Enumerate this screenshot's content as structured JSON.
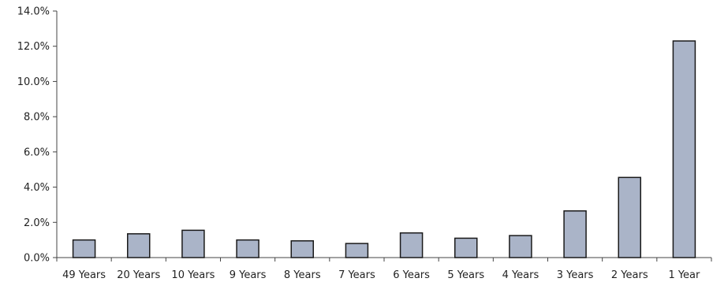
{
  "chart_data": {
    "type": "bar",
    "categories": [
      "49 Years",
      "20 Years",
      "10 Years",
      "9 Years",
      "8 Years",
      "7 Years",
      "6 Years",
      "5 Years",
      "4 Years",
      "3 Years",
      "2 Years",
      "1 Year"
    ],
    "series": [
      {
        "values": [
          1.0,
          1.35,
          1.55,
          1.0,
          0.95,
          0.8,
          1.4,
          1.1,
          1.25,
          2.65,
          4.55,
          12.3
        ]
      }
    ],
    "title": "",
    "xlabel": "",
    "ylabel": "",
    "ylim": [
      0,
      14
    ],
    "yticks": [
      0,
      2,
      4,
      6,
      8,
      10,
      12,
      14
    ],
    "ytick_labels": [
      "0.0%",
      "2.0%",
      "4.0%",
      "6.0%",
      "8.0%",
      "10.0%",
      "12.0%",
      "14.0%"
    ],
    "grid": false,
    "legend": "none",
    "colors": {
      "bar_fill": "#aab4c8",
      "bar_stroke": "#1a1a1a",
      "axis": "#444444",
      "text": "#222222"
    }
  }
}
